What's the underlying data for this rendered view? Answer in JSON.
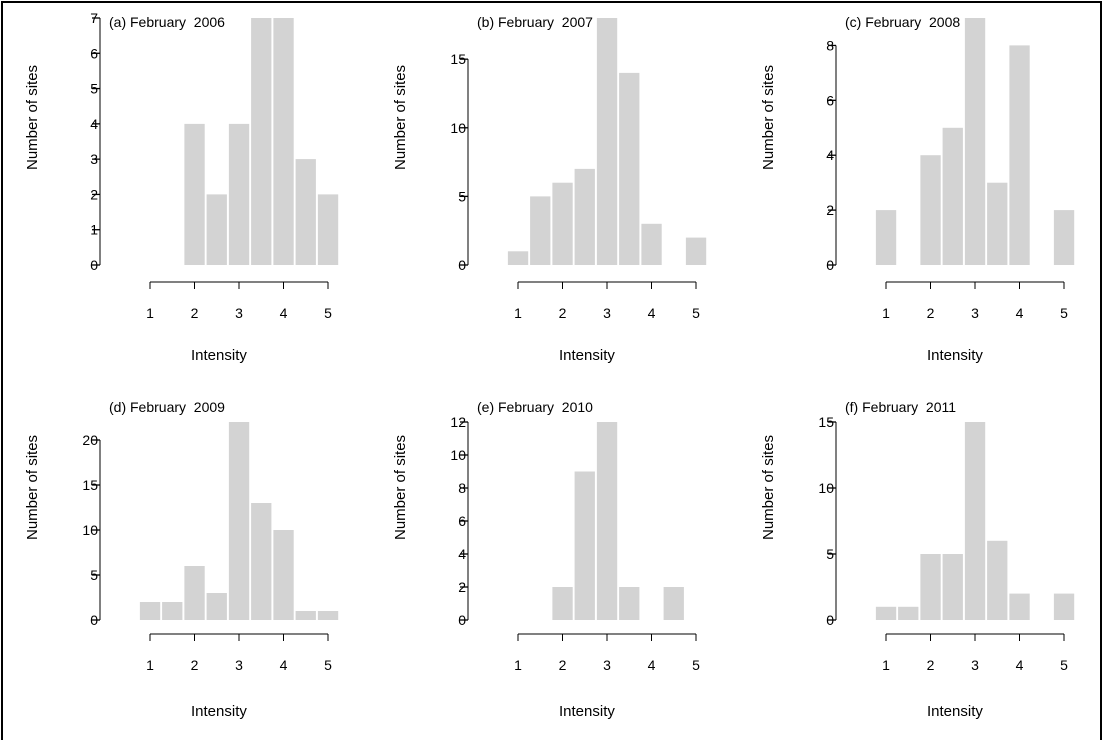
{
  "chart_data": [
    {
      "type": "bar",
      "title": "(a) February  2006",
      "xlabel": "Intensity",
      "ylabel": "Number of sites",
      "x_ticks": [
        1,
        2,
        3,
        4,
        5
      ],
      "y_ticks": [
        0,
        1,
        2,
        3,
        4,
        5,
        6,
        7
      ],
      "ylim": [
        0,
        7
      ],
      "bins": [
        {
          "x": 2.0,
          "value": 4
        },
        {
          "x": 2.5,
          "value": 2
        },
        {
          "x": 3.0,
          "value": 4
        },
        {
          "x": 3.5,
          "value": 7
        },
        {
          "x": 4.0,
          "value": 7
        },
        {
          "x": 4.5,
          "value": 3
        },
        {
          "x": 5.0,
          "value": 2
        }
      ]
    },
    {
      "type": "bar",
      "title": "(b) February  2007",
      "xlabel": "Intensity",
      "ylabel": "Number of sites",
      "x_ticks": [
        1,
        2,
        3,
        4,
        5
      ],
      "y_ticks": [
        0,
        5,
        10,
        15
      ],
      "ylim": [
        0,
        18
      ],
      "bins": [
        {
          "x": 1.0,
          "value": 1
        },
        {
          "x": 1.5,
          "value": 5
        },
        {
          "x": 2.0,
          "value": 6
        },
        {
          "x": 2.5,
          "value": 7
        },
        {
          "x": 3.0,
          "value": 18
        },
        {
          "x": 3.5,
          "value": 14
        },
        {
          "x": 4.0,
          "value": 3
        },
        {
          "x": 5.0,
          "value": 2
        }
      ]
    },
    {
      "type": "bar",
      "title": "(c) February  2008",
      "xlabel": "Intensity",
      "ylabel": "Number of sites",
      "x_ticks": [
        1,
        2,
        3,
        4,
        5
      ],
      "y_ticks": [
        0,
        2,
        4,
        6,
        8
      ],
      "ylim": [
        0,
        9
      ],
      "bins": [
        {
          "x": 1.0,
          "value": 2
        },
        {
          "x": 2.0,
          "value": 4
        },
        {
          "x": 2.5,
          "value": 5
        },
        {
          "x": 3.0,
          "value": 9
        },
        {
          "x": 3.5,
          "value": 3
        },
        {
          "x": 4.0,
          "value": 8
        },
        {
          "x": 5.0,
          "value": 2
        }
      ]
    },
    {
      "type": "bar",
      "title": "(d) February  2009",
      "xlabel": "Intensity",
      "ylabel": "Number of sites",
      "x_ticks": [
        1,
        2,
        3,
        4,
        5
      ],
      "y_ticks": [
        0,
        5,
        10,
        15,
        20
      ],
      "ylim": [
        0,
        22
      ],
      "bins": [
        {
          "x": 1.0,
          "value": 2
        },
        {
          "x": 1.5,
          "value": 2
        },
        {
          "x": 2.0,
          "value": 6
        },
        {
          "x": 2.5,
          "value": 3
        },
        {
          "x": 3.0,
          "value": 22
        },
        {
          "x": 3.5,
          "value": 13
        },
        {
          "x": 4.0,
          "value": 10
        },
        {
          "x": 4.5,
          "value": 1
        },
        {
          "x": 5.0,
          "value": 1
        }
      ]
    },
    {
      "type": "bar",
      "title": "(e) February  2010",
      "xlabel": "Intensity",
      "ylabel": "Number of sites",
      "x_ticks": [
        1,
        2,
        3,
        4,
        5
      ],
      "y_ticks": [
        0,
        2,
        4,
        6,
        8,
        10,
        12
      ],
      "ylim": [
        0,
        12
      ],
      "bins": [
        {
          "x": 2.0,
          "value": 2
        },
        {
          "x": 2.5,
          "value": 9
        },
        {
          "x": 3.0,
          "value": 12
        },
        {
          "x": 3.5,
          "value": 2
        },
        {
          "x": 4.5,
          "value": 2
        }
      ]
    },
    {
      "type": "bar",
      "title": "(f) February  2011",
      "xlabel": "Intensity",
      "ylabel": "Number of sites",
      "x_ticks": [
        1,
        2,
        3,
        4,
        5
      ],
      "y_ticks": [
        0,
        5,
        10,
        15
      ],
      "ylim": [
        0,
        15
      ],
      "bins": [
        {
          "x": 1.0,
          "value": 1
        },
        {
          "x": 1.5,
          "value": 1
        },
        {
          "x": 2.0,
          "value": 5
        },
        {
          "x": 2.5,
          "value": 5
        },
        {
          "x": 3.0,
          "value": 15
        },
        {
          "x": 3.5,
          "value": 6
        },
        {
          "x": 4.0,
          "value": 2
        },
        {
          "x": 5.0,
          "value": 2
        }
      ]
    }
  ],
  "style": {
    "bar_color": "#d3d3d3",
    "axis_color": "#000000"
  }
}
